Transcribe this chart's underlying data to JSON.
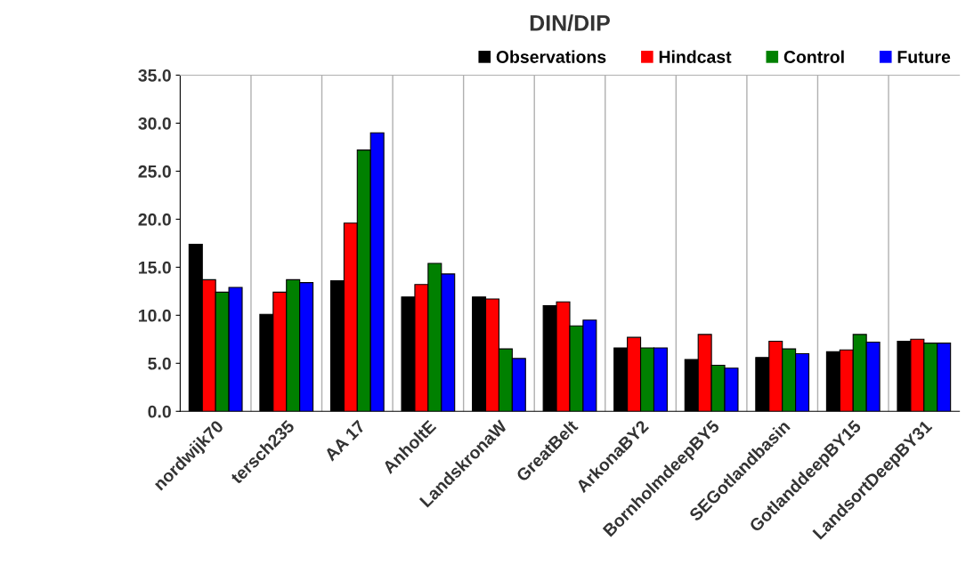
{
  "chart_data": {
    "type": "bar",
    "title": "DIN/DIP",
    "categories": [
      "nordwijk70",
      "tersch235",
      "AA 17",
      "AnholtE",
      "LandskronaW",
      "GreatBelt",
      "ArkonaBY2",
      "BornholmdeepBY5",
      "SEGotlandbasin",
      "GotlanddeepBY15",
      "LandsortDeepBY31"
    ],
    "series": [
      {
        "name": "Observations",
        "color": "#000000",
        "values": [
          17.4,
          10.1,
          13.6,
          11.9,
          11.9,
          11.0,
          6.6,
          5.4,
          5.6,
          6.2,
          7.3
        ]
      },
      {
        "name": "Hindcast",
        "color": "#ff0000",
        "values": [
          13.7,
          12.4,
          19.6,
          13.2,
          11.7,
          11.4,
          7.7,
          8.0,
          7.3,
          6.4,
          7.5
        ]
      },
      {
        "name": "Control",
        "color": "#008000",
        "values": [
          12.4,
          13.7,
          27.2,
          15.4,
          6.5,
          8.9,
          6.6,
          4.8,
          6.5,
          8.0,
          7.1
        ]
      },
      {
        "name": "Future",
        "color": "#0000ff",
        "values": [
          12.9,
          13.4,
          29.0,
          14.3,
          5.5,
          9.5,
          6.6,
          4.5,
          6.0,
          7.2,
          7.1
        ]
      }
    ],
    "ylim": [
      0,
      35
    ],
    "yticks": [
      {
        "value": 0,
        "label": "0.0"
      },
      {
        "value": 5,
        "label": "5.0"
      },
      {
        "value": 10,
        "label": "10.0"
      },
      {
        "value": 15,
        "label": "15.0"
      },
      {
        "value": 20,
        "label": "20.0"
      },
      {
        "value": 25,
        "label": "25.0"
      },
      {
        "value": 30,
        "label": "30.0"
      },
      {
        "value": 35,
        "label": "35.0"
      }
    ],
    "grid": "x",
    "legend": "top right"
  }
}
